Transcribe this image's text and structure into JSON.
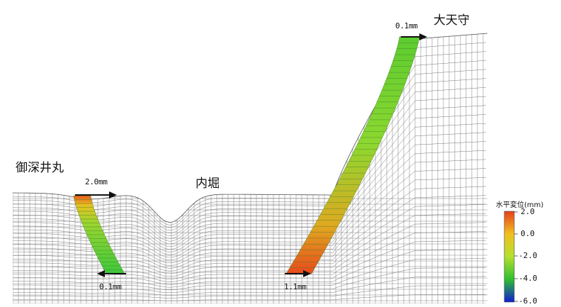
{
  "labels": {
    "left_area": "御深井丸",
    "moat": "内堀",
    "right_area": "大天守"
  },
  "displacements": {
    "left_top": "2.0mm",
    "left_bottom": "0.1mm",
    "right_top": "0.1mm",
    "right_bottom": "1.1mm"
  },
  "colorbar": {
    "title": "水平変位(mm)",
    "ticks": [
      "2.0",
      "0.0",
      "-2.0",
      "-4.0",
      "-6.0"
    ],
    "colors": [
      "#e8401c",
      "#f0c020",
      "#b4e030",
      "#30c030",
      "#1020d0"
    ]
  },
  "colors": {
    "grid_line": "#7a7a7a",
    "arrow": "#111111"
  }
}
